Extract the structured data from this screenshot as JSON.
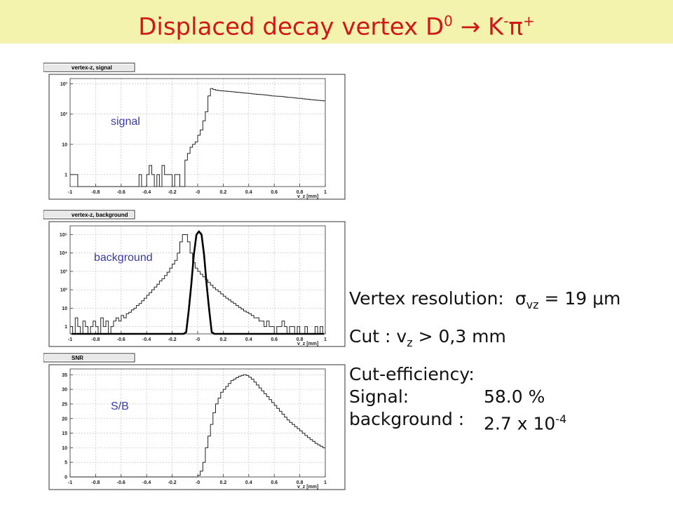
{
  "slide": {
    "title_main": "Displaced decay vertex D",
    "title_sup1": "0",
    "title_arrow": "→",
    "title_k": "K",
    "title_sup2": "-",
    "title_pi": "π",
    "title_sup3": "+"
  },
  "right_text": {
    "res_label": "Vertex resolution:",
    "res_sigma": "σ",
    "res_sub": "vz",
    "res_value": "= 19",
    "res_unit": "μm",
    "cut_prefix": "Cut : v",
    "cut_sub": "z",
    "cut_suffix": "> 0,3 mm",
    "eff_label": "Cut-efficiency:",
    "sig_label": "Signal:",
    "sig_value": "58.0 %",
    "bkg_label": "background :",
    "bkg_value": "2.7 x 10",
    "bkg_exp": "-4"
  },
  "colors": {
    "title": "#d01818",
    "title_band": "#f3f3ad",
    "panel_label": "#3a3aa8",
    "hist": "#222222"
  },
  "chart_data": [
    {
      "type": "histogram",
      "title": "vertex-z, signal",
      "label": "signal",
      "xlabel": "v_z [mm]",
      "xlim": [
        -1,
        1
      ],
      "yscale": "log",
      "ylim": [
        0.4,
        1500
      ],
      "x_ticks": [
        "-1",
        "-0.8",
        "-0.6",
        "-0.4",
        "-0.2",
        "-0",
        "0.2",
        "0.4",
        "0.6",
        "0.8",
        "1"
      ],
      "y_ticks": [
        "1",
        "10",
        "10²",
        "10³"
      ],
      "bin_width": 0.02,
      "x_start": -1,
      "values": [
        1,
        1,
        1,
        0,
        0,
        0,
        0,
        0,
        0,
        0,
        0,
        0,
        0,
        0,
        0,
        0,
        0,
        0,
        0,
        0,
        0,
        0,
        0,
        0,
        0,
        0,
        0,
        1,
        0,
        0,
        1,
        2,
        1,
        0,
        1,
        0,
        2,
        1,
        1,
        1,
        0,
        1,
        1,
        0,
        0,
        3,
        5,
        8,
        10,
        12,
        20,
        30,
        60,
        120,
        400,
        700,
        650,
        620,
        600,
        590,
        580,
        570,
        560,
        550,
        540,
        530,
        520,
        510,
        500,
        490,
        480,
        470,
        460,
        450,
        445,
        440,
        430,
        420,
        410,
        400,
        395,
        390,
        385,
        380,
        370,
        360,
        355,
        350,
        340,
        335,
        330,
        320,
        315,
        310,
        300,
        295,
        290,
        285,
        280,
        275
      ],
      "grid": true
    },
    {
      "type": "histogram",
      "title": "vertex-z, background",
      "label": "background",
      "xlabel": "v_z [mm]",
      "xlim": [
        -1,
        1
      ],
      "yscale": "log",
      "ylim": [
        0.4,
        300000
      ],
      "x_ticks": [
        "-1",
        "-0.8",
        "-0.6",
        "-0.4",
        "-0.2",
        "-0",
        "0.2",
        "0.4",
        "0.6",
        "0.8",
        "1"
      ],
      "y_ticks": [
        "1",
        "10",
        "10²",
        "10³",
        "10⁴",
        "10⁵"
      ],
      "bin_width": 0.02,
      "x_start": -1,
      "values": [
        1,
        0,
        3,
        1,
        0,
        2,
        1,
        0,
        1,
        2,
        1,
        0,
        3,
        1,
        2,
        0,
        1,
        2,
        3,
        2,
        4,
        3,
        5,
        6,
        8,
        10,
        14,
        18,
        25,
        35,
        50,
        70,
        100,
        140,
        200,
        300,
        400,
        600,
        900,
        1500,
        2500,
        4000,
        10000,
        40000,
        100000,
        100000,
        40000,
        10000,
        3000,
        1500,
        1000,
        700,
        500,
        350,
        250,
        180,
        130,
        100,
        80,
        60,
        45,
        35,
        28,
        22,
        18,
        14,
        11,
        9,
        7,
        6,
        5,
        4,
        3,
        3,
        2,
        2,
        1,
        2,
        1,
        1,
        0,
        1,
        1,
        2,
        1,
        0,
        1,
        1,
        0,
        1,
        0,
        0,
        1,
        0,
        0,
        0,
        1,
        0,
        1,
        0
      ],
      "overlay": {
        "style": "thick-line",
        "values": [
          0,
          0,
          0,
          0,
          0,
          0,
          0,
          0,
          0,
          0,
          0,
          0,
          0,
          0,
          0,
          0,
          0,
          0,
          0,
          0,
          0,
          0,
          0,
          0,
          0,
          0,
          0,
          0,
          0,
          0,
          0,
          0,
          0,
          0,
          0,
          0,
          0,
          0,
          0,
          0,
          0,
          0,
          0,
          0,
          0,
          0.5,
          8,
          200,
          8000,
          100000,
          150000,
          100000,
          8000,
          200,
          8,
          0.5,
          0,
          0,
          0,
          0,
          0,
          0,
          0,
          0,
          0,
          0,
          0,
          0,
          0,
          0,
          0,
          0,
          0,
          0,
          0,
          0,
          0,
          0,
          0,
          0,
          0,
          0,
          0,
          0,
          0,
          0,
          0,
          0,
          0,
          0,
          0,
          0,
          0,
          0,
          0,
          0,
          0,
          0,
          0,
          0
        ]
      },
      "grid": true
    },
    {
      "type": "histogram",
      "title": "SNR",
      "label": "S/B",
      "xlabel": "v_z [mm]",
      "xlim": [
        -1,
        1
      ],
      "yscale": "linear",
      "ylim": [
        0,
        37
      ],
      "x_ticks": [
        "-1",
        "-0.8",
        "-0.6",
        "-0.4",
        "-0.2",
        "-0",
        "0.2",
        "0.4",
        "0.6",
        "0.8",
        "1"
      ],
      "y_ticks": [
        "0",
        "5",
        "10",
        "15",
        "20",
        "25",
        "30",
        "35"
      ],
      "y_tick_values": [
        0,
        5,
        10,
        15,
        20,
        25,
        30,
        35
      ],
      "bin_width": 0.02,
      "x_start": -1,
      "values": [
        0,
        0,
        0,
        0,
        0,
        0,
        0,
        0,
        0,
        0,
        0,
        0,
        0,
        0,
        0,
        0,
        0,
        0,
        0,
        0,
        0,
        0,
        0,
        0,
        0,
        0,
        0,
        0,
        0,
        0,
        0,
        0,
        0,
        0,
        0,
        0,
        0,
        0,
        0,
        0,
        0,
        0,
        0,
        0,
        0,
        0,
        0,
        0,
        0,
        0,
        0.5,
        2,
        5,
        10,
        14,
        18,
        22,
        25,
        27,
        29,
        30,
        31,
        32,
        33,
        33.5,
        34,
        34.5,
        34.8,
        35,
        34.8,
        34.2,
        33.5,
        32.5,
        31.5,
        30.5,
        29.5,
        28.5,
        27.5,
        26.5,
        25.5,
        24.5,
        23.5,
        22.5,
        21.5,
        20.5,
        19.5,
        18.7,
        18,
        17.2,
        16.5,
        15.8,
        15,
        14.2,
        13.5,
        12.8,
        12.2,
        11.5,
        11,
        10.5,
        10
      ],
      "grid": true
    }
  ]
}
